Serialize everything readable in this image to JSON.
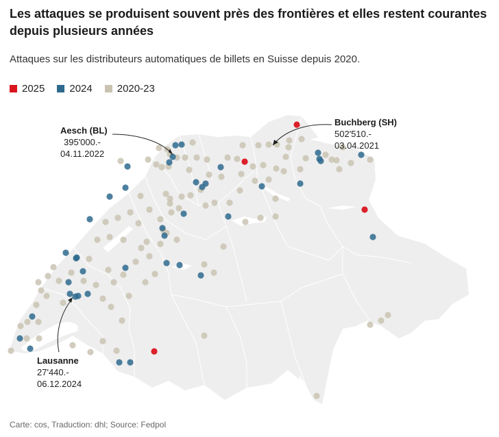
{
  "title": "Les attaques se produisent souvent près des frontières et elles restent courantes depuis plusieurs années",
  "subtitle": "Attaques sur les distributeurs automatiques de billets en Suisse depuis 2020.",
  "legend": [
    {
      "label": "2025",
      "color": "#d9141e"
    },
    {
      "label": "2024",
      "color": "#2e6a8e"
    },
    {
      "label": "2020-23",
      "color": "#c9c3b1"
    }
  ],
  "colors": {
    "land": "#eeeeee",
    "borders": "#ffffff",
    "lakes": "#ffffff"
  },
  "annotations": {
    "aesch": {
      "name": "Aesch (BL)",
      "amount": "395'000.-",
      "date": "04.11.2022"
    },
    "buchberg": {
      "name": "Buchberg (SH)",
      "amount": "502'510.-",
      "date": "03.04.2021"
    },
    "lausanne": {
      "name": "Lausanne",
      "amount": "27'440.-",
      "date": "06.12.2024"
    }
  },
  "source": "Carte: cos, Traduction: dhl; Source: Fedpol"
}
